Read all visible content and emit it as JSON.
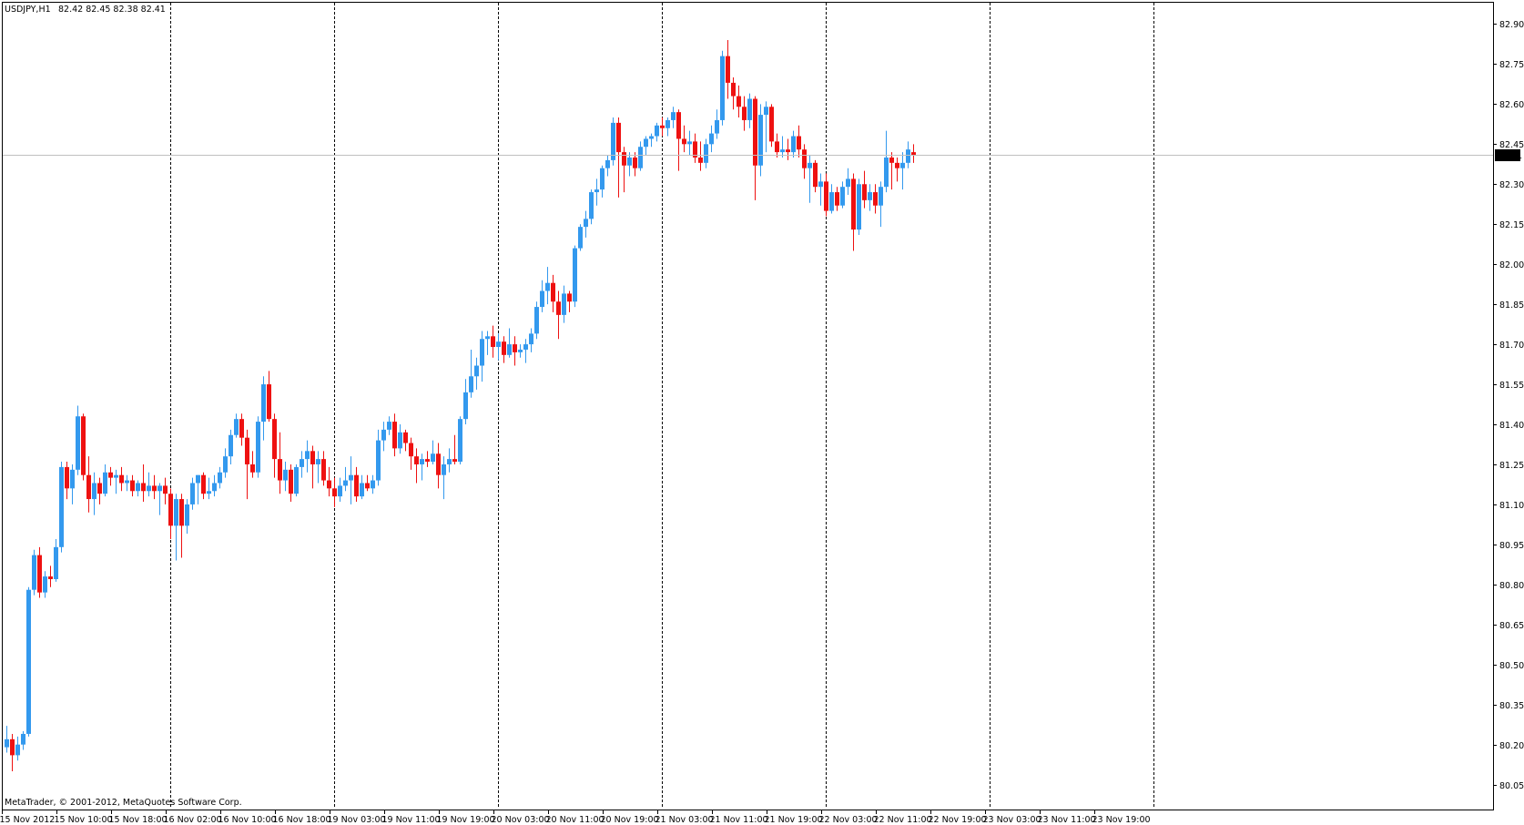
{
  "header": {
    "symbol": "USDJPY,H1",
    "ohlc": "82.42 82.45 82.38 82.41"
  },
  "copyright": "MetaTrader, © 2001-2012, MetaQuotes Software Corp.",
  "current_price_label": "82.41",
  "colors": {
    "bull": "#3399ee",
    "bear": "#ee1111",
    "grid": "#000000",
    "price_line": "#c0c0c0",
    "price_tag_bg": "#000000",
    "price_tag_fg": "#ffffff"
  },
  "chart_data": {
    "type": "candlestick",
    "title": "USDJPY,H1",
    "grid": true,
    "last_price": 82.41,
    "ylim": [
      79.96,
      82.98
    ],
    "y_ticks": [
      "82.90",
      "82.75",
      "82.60",
      "82.45",
      "82.30",
      "82.15",
      "82.00",
      "81.85",
      "81.70",
      "81.55",
      "81.40",
      "81.25",
      "81.10",
      "80.95",
      "80.80",
      "80.65",
      "80.50",
      "80.35",
      "80.20",
      "80.05"
    ],
    "x_tick_labels": [
      "15 Nov 2012",
      "15 Nov 10:00",
      "15 Nov 18:00",
      "16 Nov 02:00",
      "16 Nov 10:00",
      "16 Nov 18:00",
      "19 Nov 03:00",
      "19 Nov 11:00",
      "19 Nov 19:00",
      "20 Nov 03:00",
      "20 Nov 11:00",
      "20 Nov 19:00",
      "21 Nov 03:00",
      "21 Nov 11:00",
      "21 Nov 19:00",
      "22 Nov 03:00",
      "22 Nov 11:00",
      "22 Nov 19:00",
      "23 Nov 03:00",
      "23 Nov 11:00",
      "23 Nov 19:00"
    ],
    "candles": [
      {
        "o": 80.19,
        "h": 80.27,
        "l": 80.17,
        "c": 80.22
      },
      {
        "o": 80.22,
        "h": 80.24,
        "l": 80.1,
        "c": 80.16
      },
      {
        "o": 80.16,
        "h": 80.23,
        "l": 80.14,
        "c": 80.2
      },
      {
        "o": 80.2,
        "h": 80.25,
        "l": 80.18,
        "c": 80.24
      },
      {
        "o": 80.24,
        "h": 80.79,
        "l": 80.23,
        "c": 80.78
      },
      {
        "o": 80.78,
        "h": 80.93,
        "l": 80.76,
        "c": 80.91
      },
      {
        "o": 80.91,
        "h": 80.94,
        "l": 80.75,
        "c": 80.77
      },
      {
        "o": 80.77,
        "h": 80.85,
        "l": 80.75,
        "c": 80.83
      },
      {
        "o": 80.83,
        "h": 80.87,
        "l": 80.79,
        "c": 80.82
      },
      {
        "o": 80.82,
        "h": 80.97,
        "l": 80.81,
        "c": 80.94
      },
      {
        "o": 80.94,
        "h": 81.26,
        "l": 80.92,
        "c": 81.24
      },
      {
        "o": 81.24,
        "h": 81.26,
        "l": 81.12,
        "c": 81.16
      },
      {
        "o": 81.16,
        "h": 81.25,
        "l": 81.1,
        "c": 81.23
      },
      {
        "o": 81.23,
        "h": 81.47,
        "l": 81.21,
        "c": 81.43
      },
      {
        "o": 81.43,
        "h": 81.44,
        "l": 81.19,
        "c": 81.21
      },
      {
        "o": 81.21,
        "h": 81.28,
        "l": 81.07,
        "c": 81.12
      },
      {
        "o": 81.12,
        "h": 81.22,
        "l": 81.06,
        "c": 81.18
      },
      {
        "o": 81.18,
        "h": 81.2,
        "l": 81.1,
        "c": 81.14
      },
      {
        "o": 81.14,
        "h": 81.25,
        "l": 81.13,
        "c": 81.22
      },
      {
        "o": 81.22,
        "h": 81.24,
        "l": 81.17,
        "c": 81.2
      },
      {
        "o": 81.2,
        "h": 81.23,
        "l": 81.14,
        "c": 81.21
      },
      {
        "o": 81.21,
        "h": 81.24,
        "l": 81.15,
        "c": 81.18
      },
      {
        "o": 81.18,
        "h": 81.21,
        "l": 81.15,
        "c": 81.19
      },
      {
        "o": 81.19,
        "h": 81.21,
        "l": 81.13,
        "c": 81.15
      },
      {
        "o": 81.15,
        "h": 81.19,
        "l": 81.13,
        "c": 81.18
      },
      {
        "o": 81.18,
        "h": 81.25,
        "l": 81.11,
        "c": 81.15
      },
      {
        "o": 81.15,
        "h": 81.22,
        "l": 81.13,
        "c": 81.17
      },
      {
        "o": 81.17,
        "h": 81.21,
        "l": 81.12,
        "c": 81.15
      },
      {
        "o": 81.15,
        "h": 81.18,
        "l": 81.06,
        "c": 81.17
      },
      {
        "o": 81.17,
        "h": 81.2,
        "l": 81.1,
        "c": 81.14
      },
      {
        "o": 81.14,
        "h": 81.16,
        "l": 80.97,
        "c": 81.02
      },
      {
        "o": 81.02,
        "h": 81.14,
        "l": 80.89,
        "c": 81.12
      },
      {
        "o": 81.12,
        "h": 81.14,
        "l": 80.9,
        "c": 81.02
      },
      {
        "o": 81.02,
        "h": 81.12,
        "l": 80.99,
        "c": 81.1
      },
      {
        "o": 81.1,
        "h": 81.2,
        "l": 81.08,
        "c": 81.18
      },
      {
        "o": 81.18,
        "h": 81.21,
        "l": 81.1,
        "c": 81.21
      },
      {
        "o": 81.21,
        "h": 81.22,
        "l": 81.12,
        "c": 81.14
      },
      {
        "o": 81.14,
        "h": 81.2,
        "l": 81.12,
        "c": 81.15
      },
      {
        "o": 81.15,
        "h": 81.21,
        "l": 81.13,
        "c": 81.18
      },
      {
        "o": 81.18,
        "h": 81.24,
        "l": 81.16,
        "c": 81.22
      },
      {
        "o": 81.22,
        "h": 81.31,
        "l": 81.2,
        "c": 81.28
      },
      {
        "o": 81.28,
        "h": 81.38,
        "l": 81.25,
        "c": 81.36
      },
      {
        "o": 81.36,
        "h": 81.44,
        "l": 81.35,
        "c": 81.42
      },
      {
        "o": 81.42,
        "h": 81.44,
        "l": 81.32,
        "c": 81.35
      },
      {
        "o": 81.35,
        "h": 81.38,
        "l": 81.12,
        "c": 81.25
      },
      {
        "o": 81.25,
        "h": 81.3,
        "l": 81.2,
        "c": 81.22
      },
      {
        "o": 81.22,
        "h": 81.43,
        "l": 81.2,
        "c": 81.41
      },
      {
        "o": 81.41,
        "h": 81.58,
        "l": 81.34,
        "c": 81.55
      },
      {
        "o": 81.55,
        "h": 81.6,
        "l": 81.41,
        "c": 81.42
      },
      {
        "o": 81.42,
        "h": 81.44,
        "l": 81.2,
        "c": 81.27
      },
      {
        "o": 81.27,
        "h": 81.37,
        "l": 81.14,
        "c": 81.19
      },
      {
        "o": 81.19,
        "h": 81.26,
        "l": 81.15,
        "c": 81.23
      },
      {
        "o": 81.23,
        "h": 81.25,
        "l": 81.11,
        "c": 81.14
      },
      {
        "o": 81.14,
        "h": 81.25,
        "l": 81.13,
        "c": 81.24
      },
      {
        "o": 81.24,
        "h": 81.3,
        "l": 81.2,
        "c": 81.27
      },
      {
        "o": 81.27,
        "h": 81.34,
        "l": 81.22,
        "c": 81.3
      },
      {
        "o": 81.3,
        "h": 81.32,
        "l": 81.16,
        "c": 81.25
      },
      {
        "o": 81.25,
        "h": 81.3,
        "l": 81.18,
        "c": 81.27
      },
      {
        "o": 81.27,
        "h": 81.3,
        "l": 81.17,
        "c": 81.19
      },
      {
        "o": 81.19,
        "h": 81.24,
        "l": 81.13,
        "c": 81.16
      },
      {
        "o": 81.16,
        "h": 81.2,
        "l": 81.09,
        "c": 81.13
      },
      {
        "o": 81.13,
        "h": 81.2,
        "l": 81.11,
        "c": 81.17
      },
      {
        "o": 81.17,
        "h": 81.24,
        "l": 81.15,
        "c": 81.19
      },
      {
        "o": 81.19,
        "h": 81.28,
        "l": 81.1,
        "c": 81.21
      },
      {
        "o": 81.21,
        "h": 81.24,
        "l": 81.11,
        "c": 81.13
      },
      {
        "o": 81.13,
        "h": 81.21,
        "l": 81.12,
        "c": 81.18
      },
      {
        "o": 81.18,
        "h": 81.21,
        "l": 81.15,
        "c": 81.16
      },
      {
        "o": 81.16,
        "h": 81.21,
        "l": 81.14,
        "c": 81.19
      },
      {
        "o": 81.19,
        "h": 81.38,
        "l": 81.17,
        "c": 81.34
      },
      {
        "o": 81.34,
        "h": 81.41,
        "l": 81.3,
        "c": 81.38
      },
      {
        "o": 81.38,
        "h": 81.43,
        "l": 81.36,
        "c": 81.41
      },
      {
        "o": 81.41,
        "h": 81.44,
        "l": 81.28,
        "c": 81.31
      },
      {
        "o": 81.31,
        "h": 81.4,
        "l": 81.29,
        "c": 81.37
      },
      {
        "o": 81.37,
        "h": 81.38,
        "l": 81.3,
        "c": 81.33
      },
      {
        "o": 81.33,
        "h": 81.35,
        "l": 81.23,
        "c": 81.28
      },
      {
        "o": 81.28,
        "h": 81.31,
        "l": 81.18,
        "c": 81.25
      },
      {
        "o": 81.25,
        "h": 81.29,
        "l": 81.19,
        "c": 81.27
      },
      {
        "o": 81.27,
        "h": 81.3,
        "l": 81.24,
        "c": 81.26
      },
      {
        "o": 81.26,
        "h": 81.34,
        "l": 81.25,
        "c": 81.29
      },
      {
        "o": 81.29,
        "h": 81.33,
        "l": 81.16,
        "c": 81.21
      },
      {
        "o": 81.21,
        "h": 81.28,
        "l": 81.12,
        "c": 81.25
      },
      {
        "o": 81.25,
        "h": 81.31,
        "l": 81.22,
        "c": 81.27
      },
      {
        "o": 81.27,
        "h": 81.36,
        "l": 81.25,
        "c": 81.26
      },
      {
        "o": 81.26,
        "h": 81.43,
        "l": 81.25,
        "c": 81.42
      },
      {
        "o": 81.42,
        "h": 81.57,
        "l": 81.4,
        "c": 81.52
      },
      {
        "o": 81.52,
        "h": 81.68,
        "l": 81.5,
        "c": 81.58
      },
      {
        "o": 81.58,
        "h": 81.65,
        "l": 81.53,
        "c": 81.62
      },
      {
        "o": 81.62,
        "h": 81.75,
        "l": 81.56,
        "c": 81.72
      },
      {
        "o": 81.72,
        "h": 81.75,
        "l": 81.66,
        "c": 81.73
      },
      {
        "o": 81.73,
        "h": 81.77,
        "l": 81.65,
        "c": 81.69
      },
      {
        "o": 81.69,
        "h": 81.74,
        "l": 81.64,
        "c": 81.71
      },
      {
        "o": 81.71,
        "h": 81.73,
        "l": 81.63,
        "c": 81.66
      },
      {
        "o": 81.66,
        "h": 81.76,
        "l": 81.65,
        "c": 81.7
      },
      {
        "o": 81.7,
        "h": 81.73,
        "l": 81.62,
        "c": 81.67
      },
      {
        "o": 81.67,
        "h": 81.7,
        "l": 81.65,
        "c": 81.68
      },
      {
        "o": 81.68,
        "h": 81.72,
        "l": 81.63,
        "c": 81.7
      },
      {
        "o": 81.7,
        "h": 81.76,
        "l": 81.67,
        "c": 81.74
      },
      {
        "o": 81.74,
        "h": 81.86,
        "l": 81.72,
        "c": 81.84
      },
      {
        "o": 81.84,
        "h": 81.94,
        "l": 81.82,
        "c": 81.9
      },
      {
        "o": 81.9,
        "h": 81.99,
        "l": 81.85,
        "c": 81.93
      },
      {
        "o": 81.93,
        "h": 81.96,
        "l": 81.82,
        "c": 81.86
      },
      {
        "o": 81.86,
        "h": 81.9,
        "l": 81.72,
        "c": 81.81
      },
      {
        "o": 81.81,
        "h": 81.92,
        "l": 81.78,
        "c": 81.89
      },
      {
        "o": 81.89,
        "h": 81.9,
        "l": 81.82,
        "c": 81.86
      },
      {
        "o": 81.86,
        "h": 82.07,
        "l": 81.84,
        "c": 82.06
      },
      {
        "o": 82.06,
        "h": 82.15,
        "l": 82.05,
        "c": 82.14
      },
      {
        "o": 82.14,
        "h": 82.2,
        "l": 82.1,
        "c": 82.17
      },
      {
        "o": 82.17,
        "h": 82.28,
        "l": 82.15,
        "c": 82.27
      },
      {
        "o": 82.27,
        "h": 82.32,
        "l": 82.22,
        "c": 82.28
      },
      {
        "o": 82.28,
        "h": 82.37,
        "l": 82.25,
        "c": 82.36
      },
      {
        "o": 82.36,
        "h": 82.41,
        "l": 82.33,
        "c": 82.39
      },
      {
        "o": 82.39,
        "h": 82.55,
        "l": 82.37,
        "c": 82.53
      },
      {
        "o": 82.53,
        "h": 82.55,
        "l": 82.25,
        "c": 82.42
      },
      {
        "o": 82.42,
        "h": 82.44,
        "l": 82.27,
        "c": 82.37
      },
      {
        "o": 82.37,
        "h": 82.42,
        "l": 82.33,
        "c": 82.4
      },
      {
        "o": 82.4,
        "h": 82.42,
        "l": 82.33,
        "c": 82.36
      },
      {
        "o": 82.36,
        "h": 82.46,
        "l": 82.35,
        "c": 82.44
      },
      {
        "o": 82.44,
        "h": 82.48,
        "l": 82.41,
        "c": 82.47
      },
      {
        "o": 82.47,
        "h": 82.49,
        "l": 82.44,
        "c": 82.48
      },
      {
        "o": 82.48,
        "h": 82.53,
        "l": 82.46,
        "c": 82.52
      },
      {
        "o": 82.52,
        "h": 82.55,
        "l": 82.48,
        "c": 82.51
      },
      {
        "o": 82.51,
        "h": 82.55,
        "l": 82.48,
        "c": 82.54
      },
      {
        "o": 82.54,
        "h": 82.59,
        "l": 82.51,
        "c": 82.57
      },
      {
        "o": 82.57,
        "h": 82.58,
        "l": 82.35,
        "c": 82.47
      },
      {
        "o": 82.47,
        "h": 82.52,
        "l": 82.42,
        "c": 82.45
      },
      {
        "o": 82.45,
        "h": 82.5,
        "l": 82.41,
        "c": 82.46
      },
      {
        "o": 82.46,
        "h": 82.49,
        "l": 82.38,
        "c": 82.4
      },
      {
        "o": 82.4,
        "h": 82.46,
        "l": 82.35,
        "c": 82.38
      },
      {
        "o": 82.38,
        "h": 82.47,
        "l": 82.36,
        "c": 82.45
      },
      {
        "o": 82.45,
        "h": 82.52,
        "l": 82.42,
        "c": 82.49
      },
      {
        "o": 82.49,
        "h": 82.58,
        "l": 82.47,
        "c": 82.54
      },
      {
        "o": 82.54,
        "h": 82.8,
        "l": 82.52,
        "c": 82.78
      },
      {
        "o": 82.78,
        "h": 82.84,
        "l": 82.62,
        "c": 82.68
      },
      {
        "o": 82.68,
        "h": 82.7,
        "l": 82.58,
        "c": 82.63
      },
      {
        "o": 82.63,
        "h": 82.67,
        "l": 82.55,
        "c": 82.59
      },
      {
        "o": 82.59,
        "h": 82.63,
        "l": 82.5,
        "c": 82.54
      },
      {
        "o": 82.54,
        "h": 82.64,
        "l": 82.51,
        "c": 82.62
      },
      {
        "o": 82.62,
        "h": 82.63,
        "l": 82.24,
        "c": 82.37
      },
      {
        "o": 82.37,
        "h": 82.6,
        "l": 82.33,
        "c": 82.56
      },
      {
        "o": 82.56,
        "h": 82.61,
        "l": 82.42,
        "c": 82.59
      },
      {
        "o": 82.59,
        "h": 82.6,
        "l": 82.44,
        "c": 82.46
      },
      {
        "o": 82.46,
        "h": 82.49,
        "l": 82.4,
        "c": 82.42
      },
      {
        "o": 82.42,
        "h": 82.48,
        "l": 82.4,
        "c": 82.43
      },
      {
        "o": 82.43,
        "h": 82.47,
        "l": 82.39,
        "c": 82.42
      },
      {
        "o": 82.42,
        "h": 82.5,
        "l": 82.4,
        "c": 82.48
      },
      {
        "o": 82.48,
        "h": 82.52,
        "l": 82.4,
        "c": 82.43
      },
      {
        "o": 82.43,
        "h": 82.45,
        "l": 82.32,
        "c": 82.36
      },
      {
        "o": 82.36,
        "h": 82.41,
        "l": 82.23,
        "c": 82.38
      },
      {
        "o": 82.38,
        "h": 82.39,
        "l": 82.27,
        "c": 82.29
      },
      {
        "o": 82.29,
        "h": 82.34,
        "l": 82.22,
        "c": 82.31
      },
      {
        "o": 82.31,
        "h": 82.34,
        "l": 82.18,
        "c": 82.2
      },
      {
        "o": 82.2,
        "h": 82.3,
        "l": 82.19,
        "c": 82.27
      },
      {
        "o": 82.27,
        "h": 82.29,
        "l": 82.2,
        "c": 82.22
      },
      {
        "o": 82.22,
        "h": 82.31,
        "l": 82.21,
        "c": 82.29
      },
      {
        "o": 82.29,
        "h": 82.36,
        "l": 82.26,
        "c": 82.32
      },
      {
        "o": 82.32,
        "h": 82.34,
        "l": 82.05,
        "c": 82.13
      },
      {
        "o": 82.13,
        "h": 82.32,
        "l": 82.11,
        "c": 82.3
      },
      {
        "o": 82.3,
        "h": 82.35,
        "l": 82.21,
        "c": 82.24
      },
      {
        "o": 82.24,
        "h": 82.3,
        "l": 82.2,
        "c": 82.27
      },
      {
        "o": 82.27,
        "h": 82.3,
        "l": 82.19,
        "c": 82.22
      },
      {
        "o": 82.22,
        "h": 82.31,
        "l": 82.14,
        "c": 82.29
      },
      {
        "o": 82.29,
        "h": 82.5,
        "l": 82.27,
        "c": 82.4
      },
      {
        "o": 82.4,
        "h": 82.42,
        "l": 82.28,
        "c": 82.38
      },
      {
        "o": 82.38,
        "h": 82.4,
        "l": 82.31,
        "c": 82.36
      },
      {
        "o": 82.36,
        "h": 82.42,
        "l": 82.28,
        "c": 82.38
      },
      {
        "o": 82.38,
        "h": 82.46,
        "l": 82.36,
        "c": 82.43
      },
      {
        "o": 82.42,
        "h": 82.45,
        "l": 82.38,
        "c": 82.41
      }
    ]
  }
}
